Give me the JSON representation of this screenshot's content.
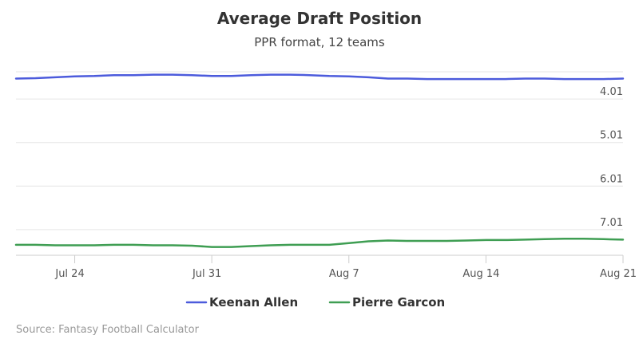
{
  "chart_data": {
    "type": "line",
    "title": "Average Draft Position",
    "subtitle": "PPR format, 12 teams",
    "credit": "Source: Fantasy Football Calculator",
    "x_ticks": [
      "Jul 24",
      "Jul 31",
      "Aug 7",
      "Aug 14",
      "Aug 21"
    ],
    "y_ticks": [
      "4.01",
      "5.01",
      "6.01",
      "7.01"
    ],
    "ylim": [
      3.2,
      7.6
    ],
    "y_reversed": true,
    "y_axis_side": "right",
    "grid": true,
    "legend_position": "bottom-center",
    "x": [
      "Jul 21",
      "Jul 22",
      "Jul 23",
      "Jul 24",
      "Jul 25",
      "Jul 26",
      "Jul 27",
      "Jul 28",
      "Jul 29",
      "Jul 30",
      "Jul 31",
      "Aug 1",
      "Aug 2",
      "Aug 3",
      "Aug 4",
      "Aug 5",
      "Aug 6",
      "Aug 7",
      "Aug 8",
      "Aug 9",
      "Aug 10",
      "Aug 11",
      "Aug 12",
      "Aug 13",
      "Aug 14",
      "Aug 15",
      "Aug 16",
      "Aug 17",
      "Aug 18",
      "Aug 19",
      "Aug 20",
      "Aug 21"
    ],
    "series": [
      {
        "name": "Keenan Allen",
        "color": "#4c5bdc",
        "values": [
          3.54,
          3.53,
          3.51,
          3.49,
          3.48,
          3.46,
          3.46,
          3.45,
          3.45,
          3.46,
          3.48,
          3.48,
          3.46,
          3.45,
          3.45,
          3.46,
          3.48,
          3.49,
          3.51,
          3.54,
          3.54,
          3.55,
          3.55,
          3.55,
          3.55,
          3.55,
          3.54,
          3.54,
          3.55,
          3.55,
          3.55,
          3.54
        ]
      },
      {
        "name": "Pierre Garcon",
        "color": "#3f9e53",
        "values": [
          7.36,
          7.36,
          7.37,
          7.37,
          7.37,
          7.36,
          7.36,
          7.37,
          7.37,
          7.38,
          7.41,
          7.41,
          7.39,
          7.37,
          7.36,
          7.36,
          7.36,
          7.32,
          7.28,
          7.26,
          7.27,
          7.27,
          7.27,
          7.26,
          7.25,
          7.25,
          7.24,
          7.23,
          7.22,
          7.22,
          7.23,
          7.24
        ]
      }
    ]
  }
}
